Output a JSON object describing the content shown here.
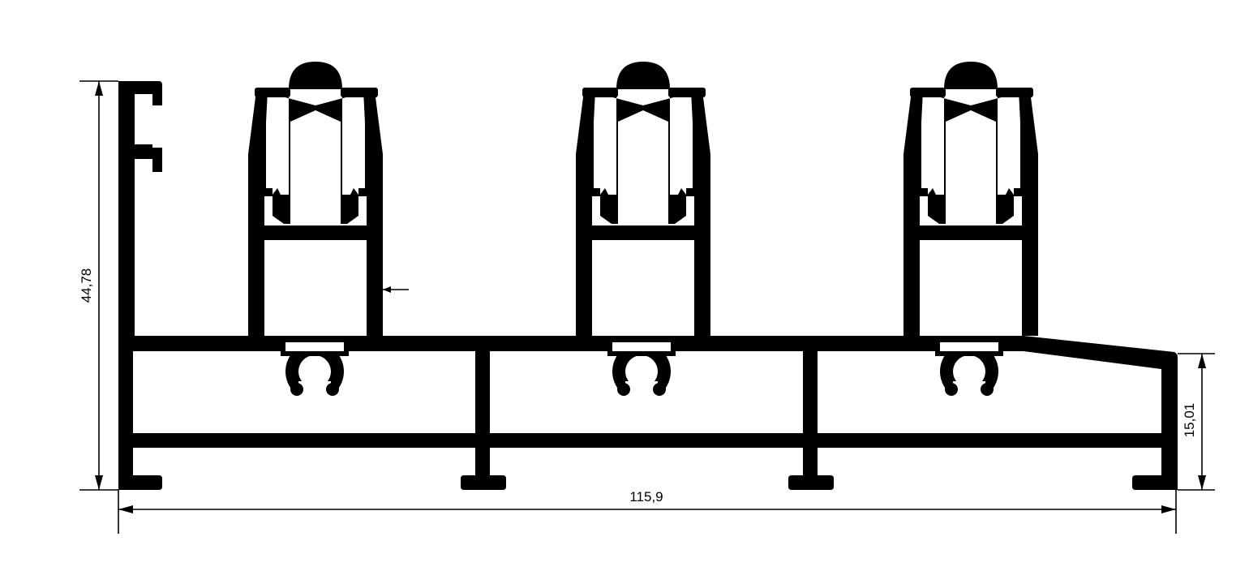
{
  "dimensions": {
    "height": "44,78",
    "width": "115,9",
    "base_height": "15,01"
  },
  "colors": {
    "profile": "#000000",
    "background": "#ffffff"
  }
}
